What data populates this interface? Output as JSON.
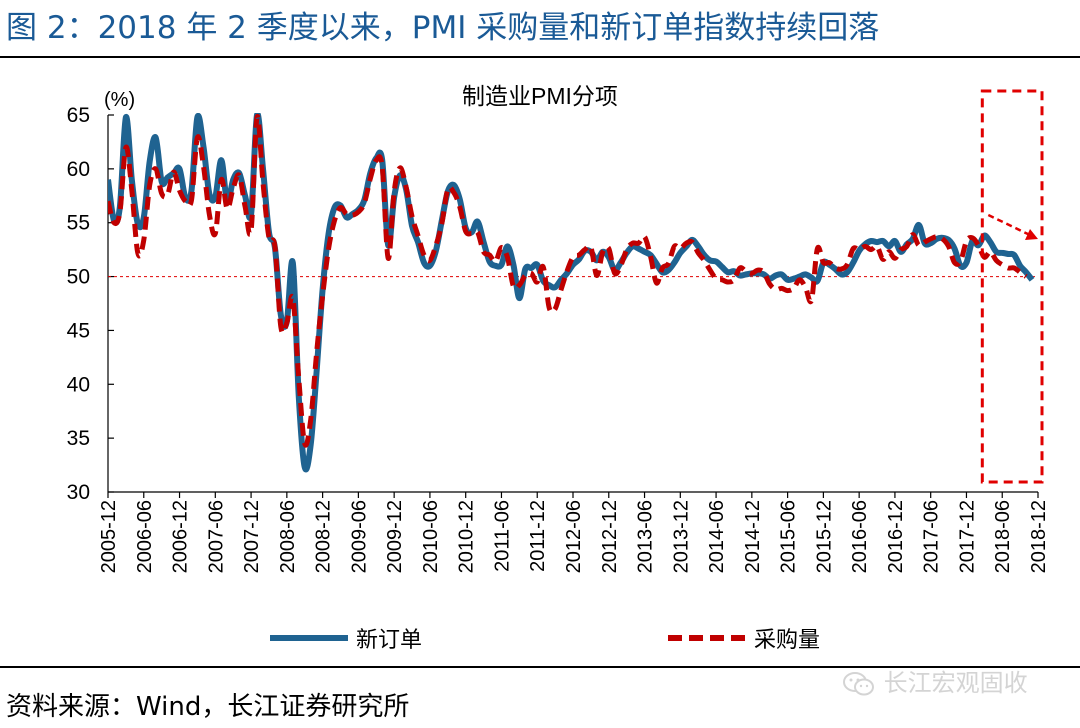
{
  "figure_title": "图 2：2018 年 2 季度以来，PMI 采购量和新订单指数持续回落",
  "source_text": "资料来源：Wind，长江证券研究所",
  "watermark": {
    "text": "长江宏观固收",
    "icon": "wechat-icon"
  },
  "colors": {
    "new_orders": "#1f6391",
    "purchases": "#c00000",
    "title": "#1a5a96",
    "ref_line": "#e00000",
    "highlight": "#e00000"
  },
  "chart_data": {
    "type": "line",
    "title": "制造业PMI分项",
    "ylabel": "(%)",
    "ylim": [
      30,
      65
    ],
    "yticks": [
      30,
      35,
      40,
      45,
      50,
      55,
      60,
      65
    ],
    "xtick_labels": [
      "2005-12",
      "2006-06",
      "2006-12",
      "2007-06",
      "2007-12",
      "2008-06",
      "2008-12",
      "2009-06",
      "2009-12",
      "2010-06",
      "2010-12",
      "2011-06",
      "2011-12",
      "2012-06",
      "2012-12",
      "2013-06",
      "2013-12",
      "2014-06",
      "2014-12",
      "2015-06",
      "2015-12",
      "2016-06",
      "2016-12",
      "2017-06",
      "2017-12",
      "2018-06",
      "2018-12"
    ],
    "start_month": "2005-12",
    "reference_line": 50,
    "highlight_from": "2018-04",
    "series": [
      {
        "name": "新订单",
        "style": "solid",
        "values": [
          59,
          55.2,
          56.5,
          64.8,
          59,
          54.9,
          55.5,
          60.7,
          62.9,
          58.8,
          59.2,
          59.6,
          60,
          57.3,
          58,
          64.8,
          62.1,
          57.7,
          57.4,
          60.8,
          56.9,
          59,
          59.6,
          57.5,
          55.8,
          65,
          60,
          54.1,
          52.7,
          46.4,
          45.8,
          51.3,
          38.8,
          32.3,
          34.4,
          41.3,
          48.8,
          54,
          56.4,
          56.6,
          55.5,
          55.8,
          56.2,
          57.1,
          59.6,
          61,
          60.8,
          52.9,
          57.4,
          59.4,
          58.1,
          54.7,
          53.2,
          51.3,
          51,
          52.4,
          55.2,
          57.9,
          58.5,
          57.2,
          54.5,
          54.1,
          55.1,
          53.2,
          51.4,
          51,
          51.1,
          52.8,
          51.1,
          48,
          50.7,
          50.8,
          51.1,
          49.6,
          49.2,
          49,
          49.7,
          50.3,
          51.1,
          51.6,
          52.4,
          52.3,
          51.5,
          52.3,
          51.8,
          50.6,
          51.3,
          52.2,
          52.8,
          52.6,
          52.3,
          52,
          51.2,
          50.4,
          50.6,
          51.3,
          52.2,
          52.8,
          53.4,
          52.8,
          52,
          51.5,
          51.4,
          50.9,
          50.4,
          50.5,
          50.1,
          50.2,
          50.3,
          50.3,
          50.2,
          49.8,
          50.1,
          50.2,
          49.7,
          49.8,
          50,
          50.2,
          49.9,
          49.6,
          51.3,
          51.1,
          50.7,
          50.2,
          50.4,
          51.3,
          52.4,
          53,
          53.3,
          53.2,
          53.3,
          52.8,
          53.3,
          52.3,
          53,
          53.5,
          54.8,
          53.1,
          53.1,
          53.5,
          53.6,
          53.4,
          52.6,
          51,
          51.3,
          53.3,
          52.9,
          53.8,
          53.2,
          52.3,
          52.2,
          52.1,
          52,
          51,
          50.4,
          49.7
        ]
      },
      {
        "name": "采购量",
        "style": "dashed",
        "values": [
          57,
          55,
          56,
          62,
          58,
          52.2,
          53.4,
          58.5,
          60,
          57.7,
          57.6,
          59.7,
          58,
          57,
          57.1,
          62.9,
          60.3,
          55.8,
          54,
          59,
          56.3,
          58.2,
          59.4,
          56.5,
          54.3,
          64.8,
          58.7,
          53.6,
          52.8,
          45.3,
          45.7,
          48,
          40.5,
          34.5,
          36.7,
          43,
          48.2,
          52.6,
          55.2,
          56.4,
          55.8,
          55.7,
          56,
          56.8,
          59.1,
          60.8,
          60.2,
          51.7,
          57.9,
          60.1,
          58.3,
          55.6,
          53.8,
          52,
          51.5,
          52.9,
          54.9,
          58.1,
          57.8,
          56.5,
          54.2,
          54,
          54.1,
          52.3,
          52,
          51.4,
          52.7,
          51.8,
          49.1,
          49.2,
          50.1,
          50.3,
          49.5,
          50.9,
          47.1,
          47,
          48.8,
          50.5,
          51.8,
          52,
          52.5,
          52.7,
          50.1,
          52.3,
          52.6,
          50.3,
          51,
          52.5,
          53.1,
          53.1,
          53.7,
          51.9,
          49.4,
          50.8,
          51.2,
          52.8,
          52.6,
          53.1,
          53.2,
          52.2,
          51.5,
          50.6,
          49.8,
          49.7,
          49.5,
          49.7,
          50.8,
          50.5,
          50.3,
          50.6,
          50.4,
          49.3,
          48.8,
          48.9,
          48.7,
          48.9,
          49.7,
          49,
          47.8,
          52.6,
          51.3,
          51.3,
          50.8,
          50.7,
          51.1,
          52.6,
          52.5,
          52.8,
          52.5,
          52.8,
          51.6,
          52.3,
          51.7,
          52.5,
          52.8,
          53.9,
          52.9,
          53.2,
          53.5,
          53.7,
          53.5,
          52.8,
          51.3,
          51.4,
          53.3,
          53.6,
          52.9,
          51.8,
          52.3,
          51.5,
          51.1,
          50.8,
          50.8,
          50.4,
          50
        ]
      }
    ]
  }
}
